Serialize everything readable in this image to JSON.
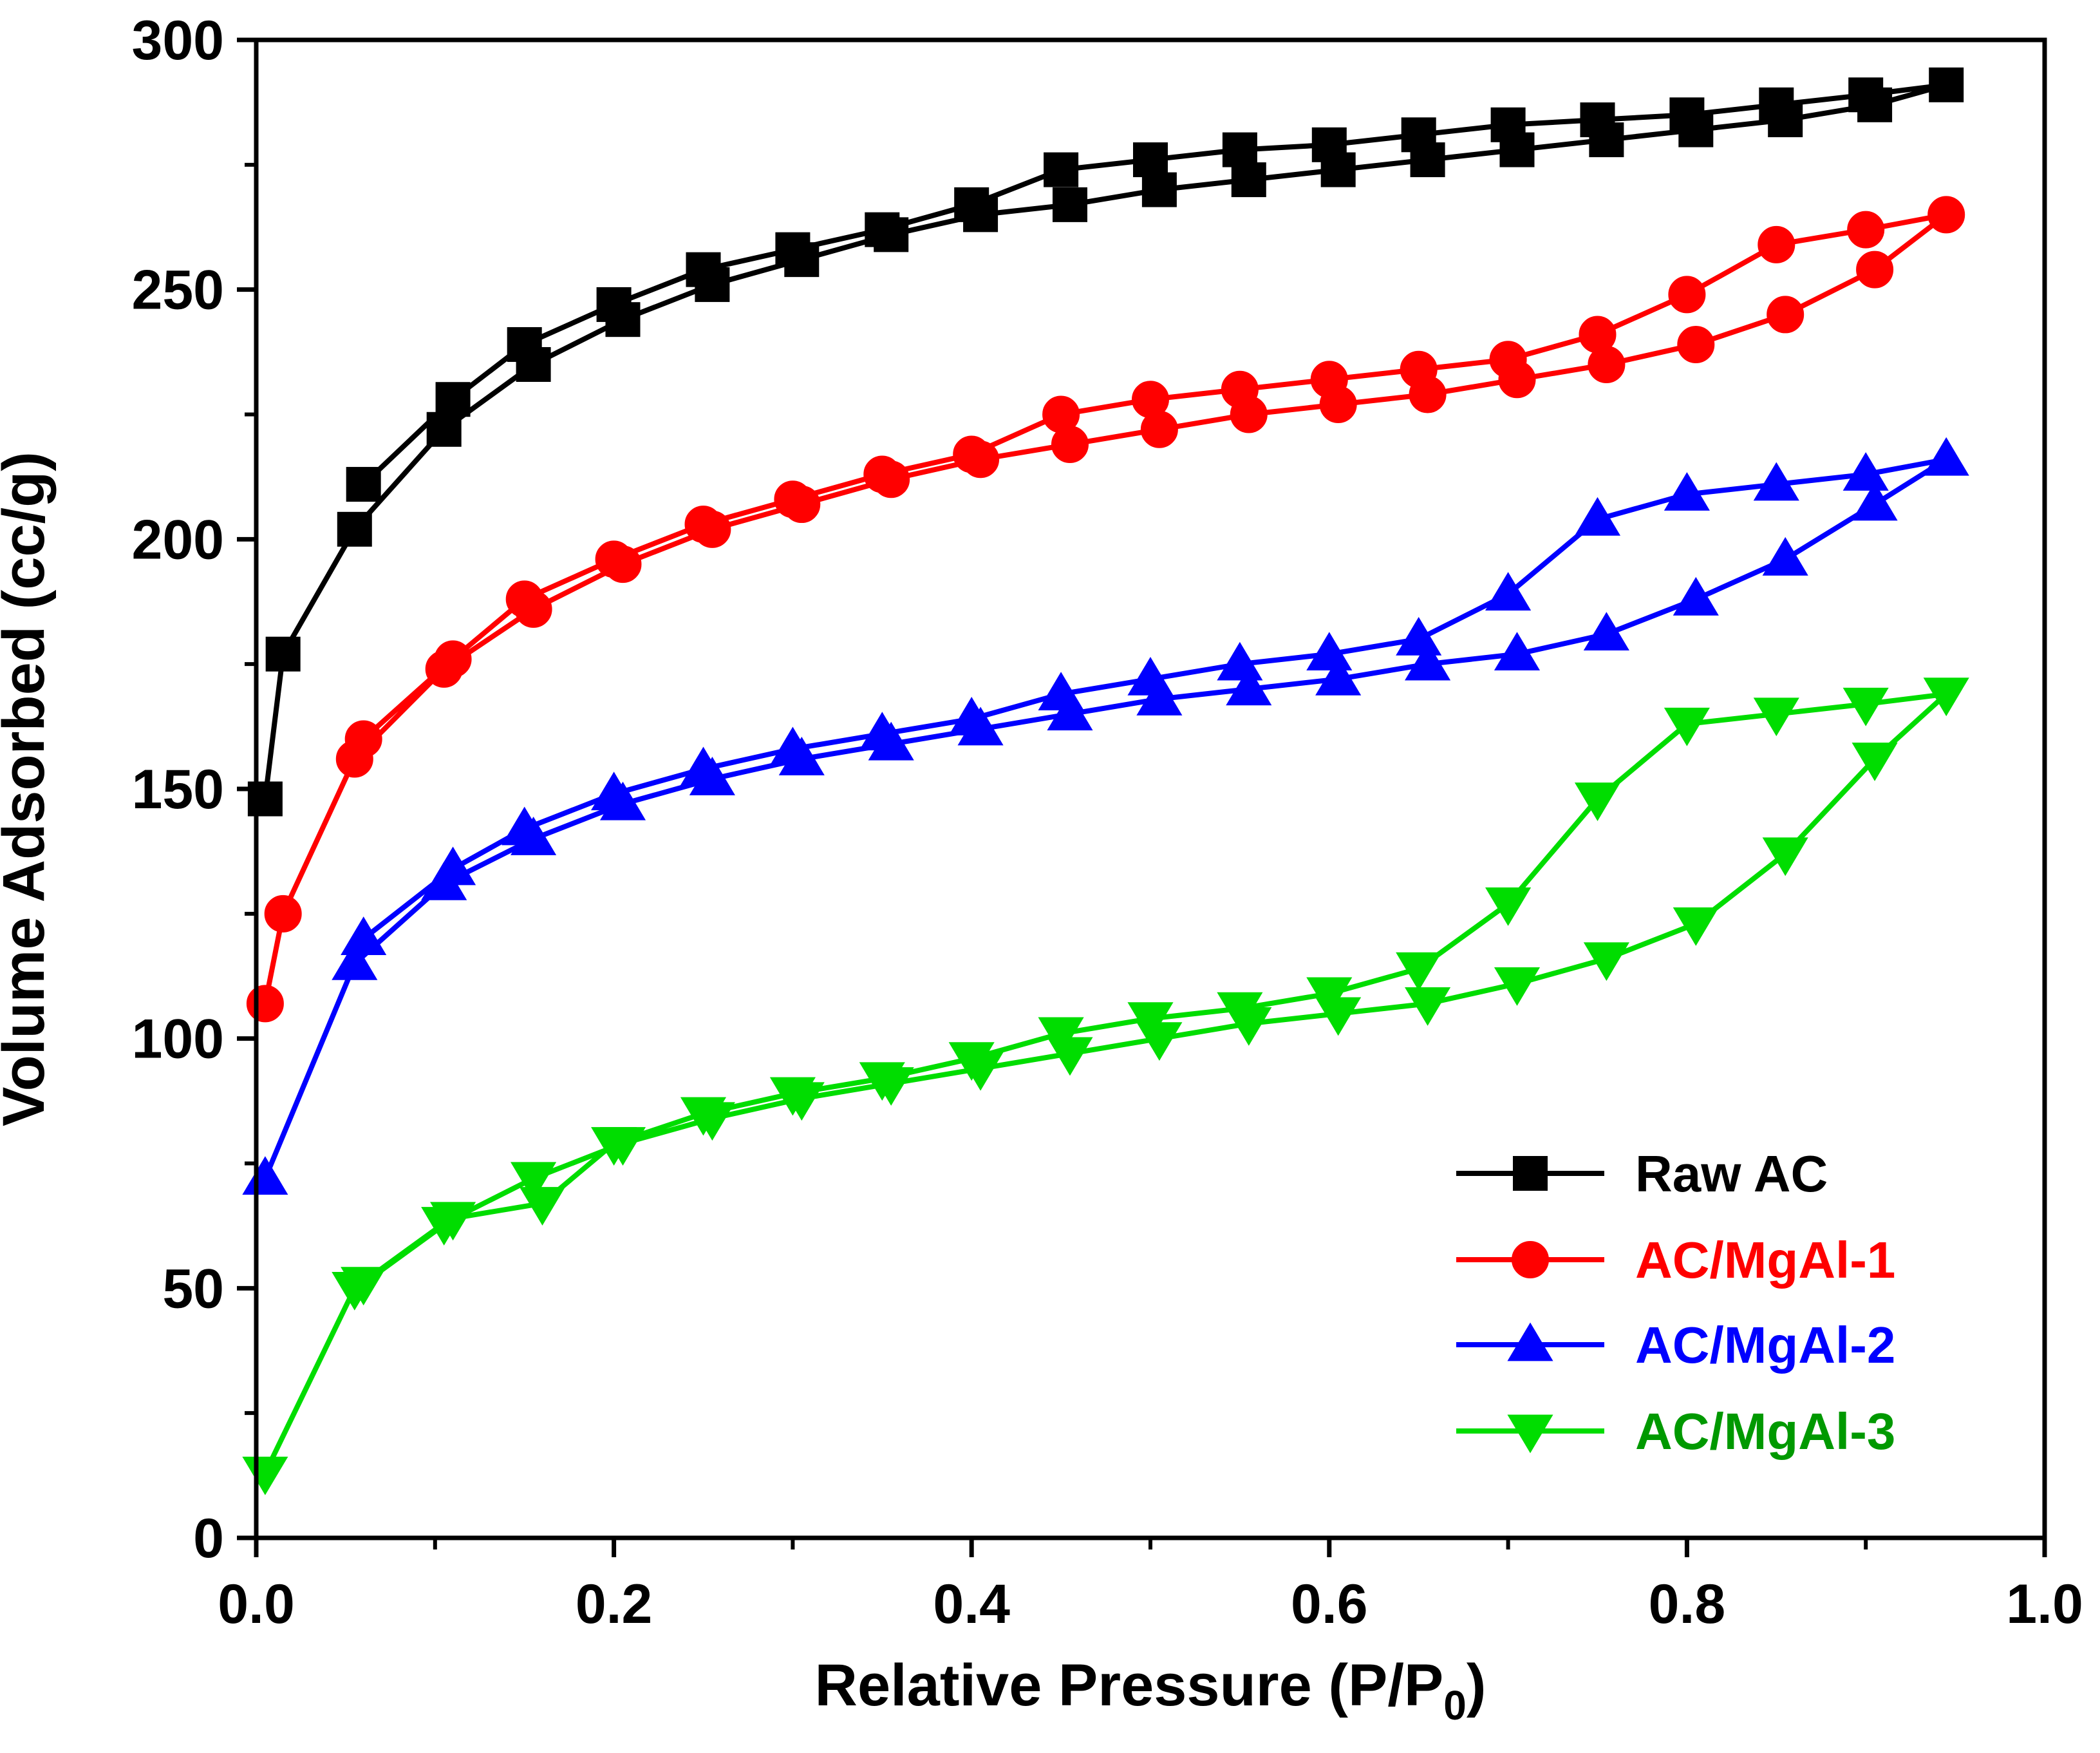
{
  "chart_data": {
    "type": "line",
    "title": "",
    "xlabel_main": "Relative Pressure (P/P",
    "xlabel_sub": "0",
    "xlabel_tail": ")",
    "ylabel": "Volume Adsorbed (cc/g)",
    "xlim": [
      0.0,
      1.0
    ],
    "ylim": [
      0,
      300
    ],
    "x_ticks": [
      0.0,
      0.2,
      0.4,
      0.6,
      0.8,
      1.0
    ],
    "x_tick_labels": [
      "0.0",
      "0.2",
      "0.4",
      "0.6",
      "0.8",
      "1.0"
    ],
    "y_ticks": [
      0,
      50,
      100,
      150,
      200,
      250,
      300
    ],
    "y_tick_labels": [
      "0",
      "50",
      "100",
      "150",
      "200",
      "250",
      "300"
    ],
    "grid": false,
    "legend_position": "bottom-right",
    "series": [
      {
        "name": "Raw AC",
        "color": "#000000",
        "label_color": "#000000",
        "marker": "square",
        "x": [
          0.005,
          0.015,
          0.055,
          0.105,
          0.155,
          0.205,
          0.255,
          0.305,
          0.355,
          0.405,
          0.455,
          0.505,
          0.555,
          0.605,
          0.655,
          0.705,
          0.755,
          0.805,
          0.855,
          0.905,
          0.945,
          0.9,
          0.85,
          0.8,
          0.75,
          0.7,
          0.65,
          0.6,
          0.55,
          0.5,
          0.45,
          0.4,
          0.35,
          0.3,
          0.25,
          0.2,
          0.15,
          0.11,
          0.06
        ],
        "y": [
          148,
          177,
          202,
          222,
          235,
          244,
          251,
          256,
          261,
          265,
          267,
          270,
          272,
          274,
          276,
          278,
          280,
          282,
          284,
          287,
          291,
          289,
          287,
          285,
          284,
          283,
          281,
          279,
          278,
          276,
          274,
          267,
          262,
          258,
          254,
          247,
          239,
          228,
          211
        ]
      },
      {
        "name": "AC/MgAl-1",
        "color": "#ff0000",
        "label_color": "#ff0000",
        "marker": "circle",
        "x": [
          0.005,
          0.015,
          0.055,
          0.105,
          0.155,
          0.205,
          0.255,
          0.305,
          0.355,
          0.405,
          0.455,
          0.505,
          0.555,
          0.605,
          0.655,
          0.705,
          0.755,
          0.805,
          0.855,
          0.905,
          0.945,
          0.9,
          0.85,
          0.8,
          0.75,
          0.7,
          0.65,
          0.6,
          0.55,
          0.5,
          0.45,
          0.4,
          0.35,
          0.3,
          0.25,
          0.2,
          0.15,
          0.11,
          0.06
        ],
        "y": [
          107,
          125,
          156,
          174,
          186,
          195,
          202,
          207,
          212,
          216,
          219,
          222,
          225,
          227,
          229,
          232,
          235,
          239,
          245,
          254,
          265,
          262,
          259,
          249,
          241,
          236,
          234,
          232,
          230,
          228,
          225,
          217,
          213,
          208,
          203,
          196,
          188,
          176,
          160
        ]
      },
      {
        "name": "AC/MgAl-2",
        "color": "#0000ff",
        "label_color": "#0000ff",
        "marker": "triangle-up",
        "x": [
          0.005,
          0.055,
          0.105,
          0.155,
          0.205,
          0.255,
          0.305,
          0.355,
          0.405,
          0.455,
          0.505,
          0.555,
          0.605,
          0.655,
          0.705,
          0.755,
          0.805,
          0.855,
          0.905,
          0.945,
          0.9,
          0.85,
          0.8,
          0.75,
          0.7,
          0.65,
          0.6,
          0.55,
          0.5,
          0.45,
          0.4,
          0.35,
          0.3,
          0.25,
          0.2,
          0.15,
          0.11,
          0.06
        ],
        "y": [
          72,
          115,
          131,
          140,
          147,
          152,
          156,
          159,
          162,
          165,
          168,
          170,
          172,
          175,
          177,
          181,
          188,
          196,
          207,
          216,
          213,
          211,
          209,
          204,
          189,
          180,
          177,
          175,
          172,
          169,
          164,
          161,
          158,
          154,
          149,
          142,
          134,
          120
        ]
      },
      {
        "name": "AC/MgAl-3",
        "color": "#00dd00",
        "label_color": "#009900",
        "marker": "triangle-down",
        "x": [
          0.005,
          0.055,
          0.105,
          0.155,
          0.205,
          0.255,
          0.305,
          0.355,
          0.405,
          0.455,
          0.505,
          0.555,
          0.605,
          0.655,
          0.705,
          0.755,
          0.805,
          0.855,
          0.905,
          0.945,
          0.9,
          0.85,
          0.8,
          0.75,
          0.7,
          0.65,
          0.6,
          0.55,
          0.5,
          0.45,
          0.4,
          0.35,
          0.3,
          0.25,
          0.2,
          0.16,
          0.11,
          0.06
        ],
        "y": [
          13,
          50,
          63,
          72,
          79,
          84,
          88,
          91,
          94,
          97,
          100,
          103,
          105,
          107,
          111,
          116,
          123,
          137,
          156,
          169,
          167,
          165,
          163,
          148,
          127,
          114,
          109,
          106,
          104,
          101,
          96,
          92,
          89,
          85,
          79,
          67,
          64,
          51
        ]
      }
    ]
  }
}
